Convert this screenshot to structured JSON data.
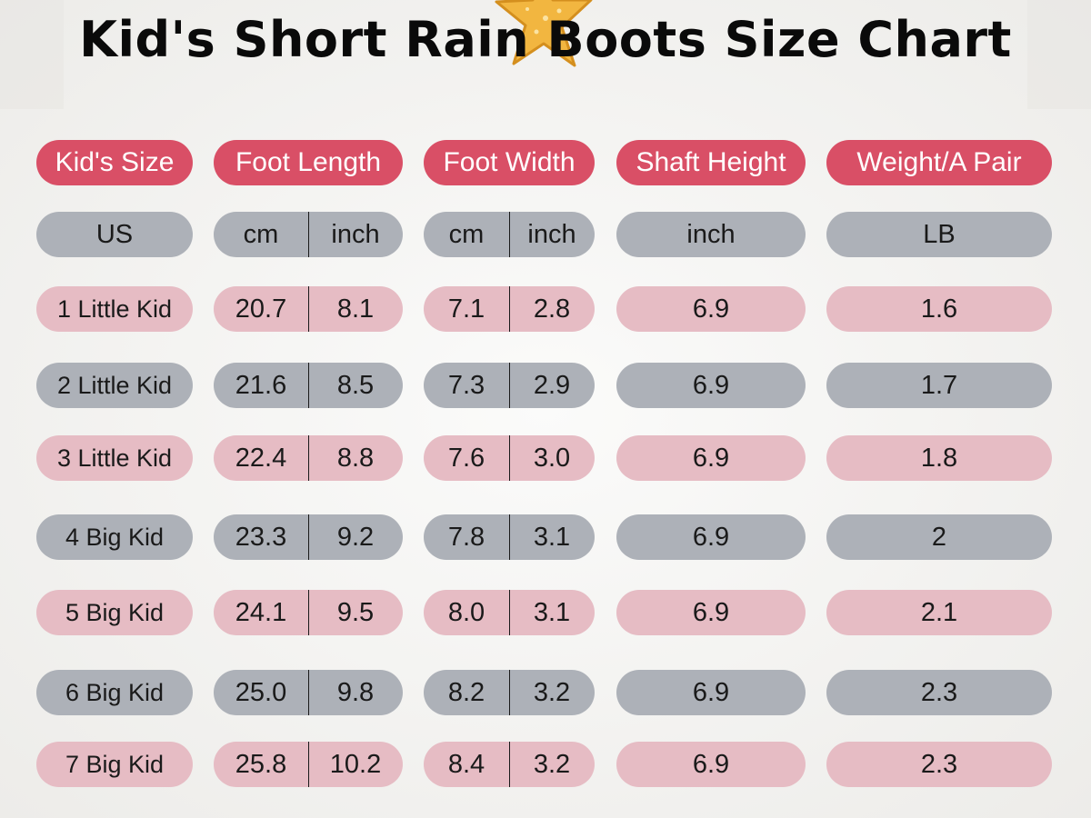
{
  "title": "Kid's Short Rain Boots Size Chart",
  "colors": {
    "header": "#d94f66",
    "row_gray": "#adb1b8",
    "row_pink": "#e6bcc4",
    "background": "#f6f6f4",
    "starfish": "#f2b640"
  },
  "decoration": "starfish-illustration",
  "chart_data": {
    "type": "table",
    "title": "Kid's Short Rain Boots Size Chart",
    "headers": [
      "Kid's Size",
      "Foot Length",
      "Foot Width",
      "Shaft Height",
      "Weight/A Pair"
    ],
    "units": {
      "size": "US",
      "length_cm": "cm",
      "length_inch": "inch",
      "width_cm": "cm",
      "width_inch": "inch",
      "shaft": "inch",
      "weight": "LB"
    },
    "rows": [
      {
        "size": "1 Little Kid",
        "length_cm": "20.7",
        "length_inch": "8.1",
        "width_cm": "7.1",
        "width_inch": "2.8",
        "shaft": "6.9",
        "weight": "1.6"
      },
      {
        "size": "2 Little Kid",
        "length_cm": "21.6",
        "length_inch": "8.5",
        "width_cm": "7.3",
        "width_inch": "2.9",
        "shaft": "6.9",
        "weight": "1.7"
      },
      {
        "size": "3 Little Kid",
        "length_cm": "22.4",
        "length_inch": "8.8",
        "width_cm": "7.6",
        "width_inch": "3.0",
        "shaft": "6.9",
        "weight": "1.8"
      },
      {
        "size": "4 Big Kid",
        "length_cm": "23.3",
        "length_inch": "9.2",
        "width_cm": "7.8",
        "width_inch": "3.1",
        "shaft": "6.9",
        "weight": "2"
      },
      {
        "size": "5 Big Kid",
        "length_cm": "24.1",
        "length_inch": "9.5",
        "width_cm": "8.0",
        "width_inch": "3.1",
        "shaft": "6.9",
        "weight": "2.1"
      },
      {
        "size": "6 Big Kid",
        "length_cm": "25.0",
        "length_inch": "9.8",
        "width_cm": "8.2",
        "width_inch": "3.2",
        "shaft": "6.9",
        "weight": "2.3"
      },
      {
        "size": "7 Big Kid",
        "length_cm": "25.8",
        "length_inch": "10.2",
        "width_cm": "8.4",
        "width_inch": "3.2",
        "shaft": "6.9",
        "weight": "2.3"
      }
    ]
  }
}
